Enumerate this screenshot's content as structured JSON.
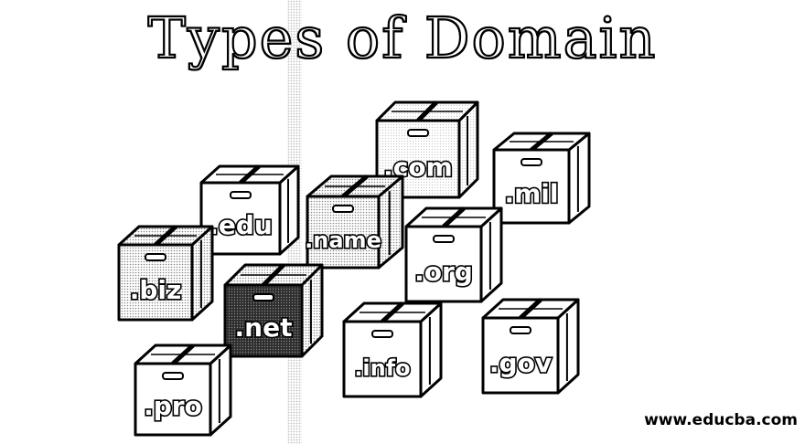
{
  "title": "Types of Domain",
  "watermark": "www.educba.com",
  "colors": {
    "line": "#000000",
    "background": "#ffffff",
    "dotted": "#9a9a9a",
    "dark": "#3a3a3a"
  },
  "boxes": [
    {
      "label": ".com",
      "style": "light"
    },
    {
      "label": ".mil",
      "style": "white"
    },
    {
      "label": ".edu",
      "style": "white"
    },
    {
      "label": ".name",
      "style": "dotted"
    },
    {
      "label": ".org",
      "style": "white"
    },
    {
      "label": ".biz",
      "style": "dotted"
    },
    {
      "label": ".net",
      "style": "dark"
    },
    {
      "label": ".info",
      "style": "white"
    },
    {
      "label": ".gov",
      "style": "white"
    },
    {
      "label": ".pro",
      "style": "white"
    }
  ]
}
